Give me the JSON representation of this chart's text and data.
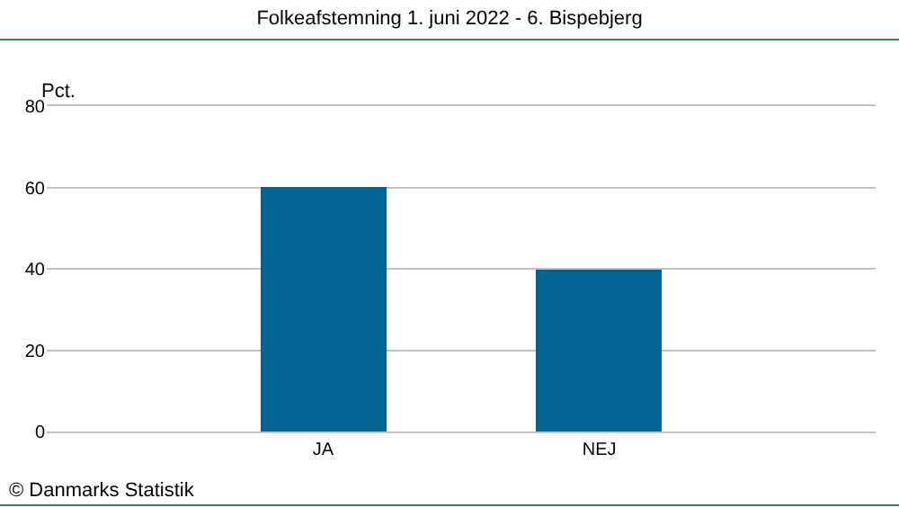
{
  "chart_data": {
    "type": "bar",
    "title": "Folkeafstemning 1. juni 2022 - 6. Bispebjerg",
    "ylabel": "Pct.",
    "categories": [
      "JA",
      "NEJ"
    ],
    "values": [
      60.2,
      39.8
    ],
    "color": "#006390",
    "ylim": [
      0,
      80
    ],
    "yticks": [
      0,
      20,
      40,
      60,
      80
    ],
    "grid": "y",
    "annotations": [
      "© Danmarks Statistik"
    ]
  }
}
